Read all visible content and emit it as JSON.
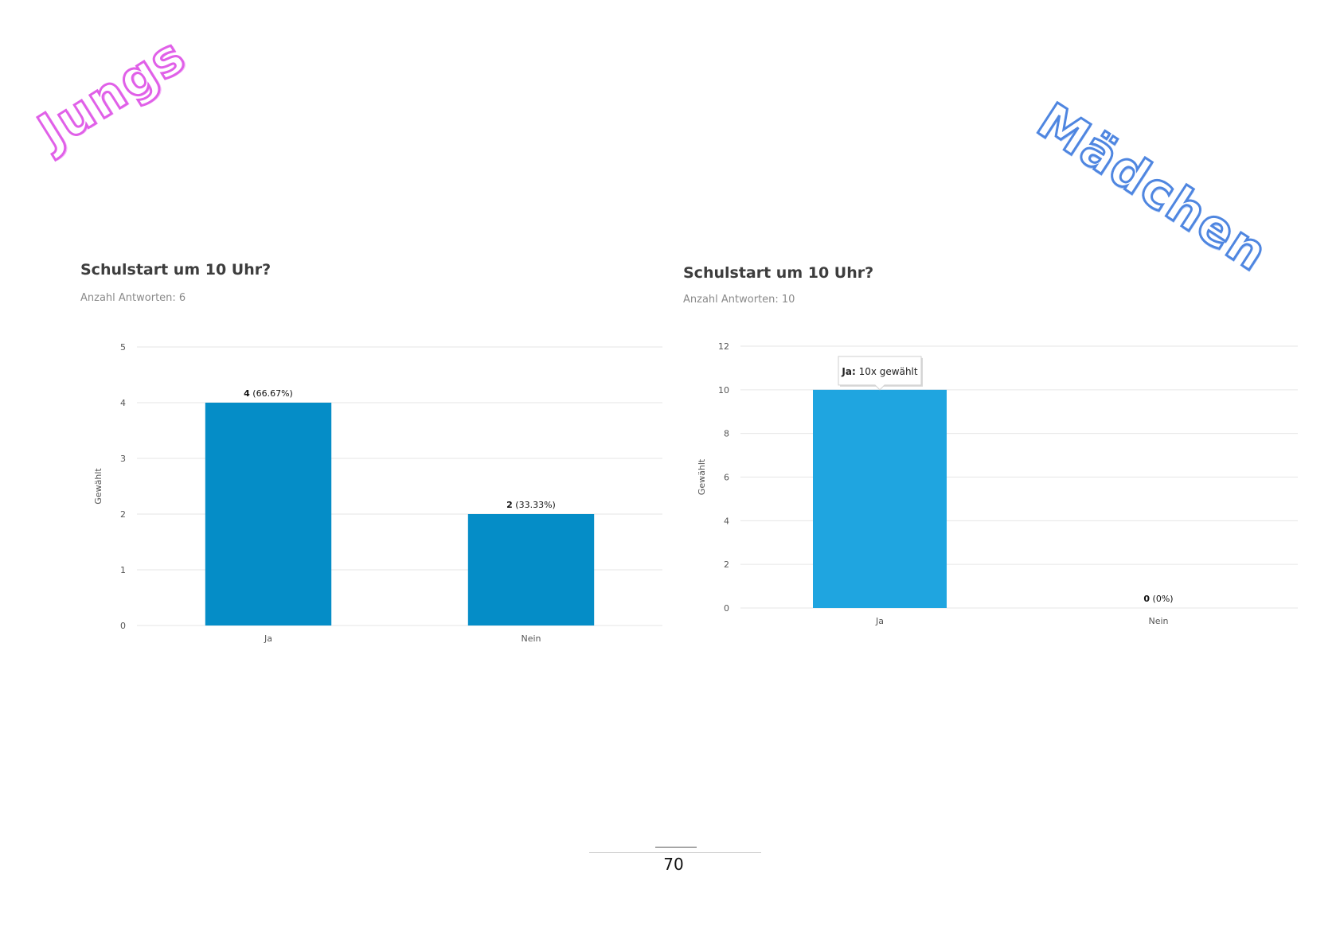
{
  "labels": {
    "boys": "Jungs",
    "girls": "Mädchen"
  },
  "page_number": "70",
  "colors": {
    "boys_bar": "#058dc7",
    "girls_bar": "#1fa5e0",
    "grid": "#e6e6e6"
  },
  "chart_data": [
    {
      "type": "bar",
      "title": "Schulstart um 10 Uhr?",
      "subtitle": "Anzahl Antworten: 6",
      "ylabel": "Gewählt",
      "xlabel": "",
      "categories": [
        "Ja",
        "Nein"
      ],
      "values": [
        4,
        2
      ],
      "ylim": [
        0,
        5
      ],
      "yticks": [
        0,
        1,
        2,
        3,
        4,
        5
      ],
      "data_labels": [
        {
          "bold": "4",
          "rest": " (66.67%)"
        },
        {
          "bold": "2",
          "rest": " (33.33%)"
        }
      ],
      "grid": true,
      "legend": "none"
    },
    {
      "type": "bar",
      "title": "Schulstart um 10 Uhr?",
      "subtitle": "Anzahl Antworten: 10",
      "ylabel": "Gewählt",
      "xlabel": "",
      "categories": [
        "Ja",
        "Nein"
      ],
      "values": [
        10,
        0
      ],
      "ylim": [
        0,
        12
      ],
      "yticks": [
        0,
        2,
        4,
        6,
        8,
        10,
        12
      ],
      "data_labels": [
        null,
        {
          "bold": "0",
          "rest": " (0%)"
        }
      ],
      "tooltip": {
        "category_index": 0,
        "bold": "Ja:",
        "rest": " 10x gewählt"
      },
      "grid": true,
      "legend": "none"
    }
  ]
}
